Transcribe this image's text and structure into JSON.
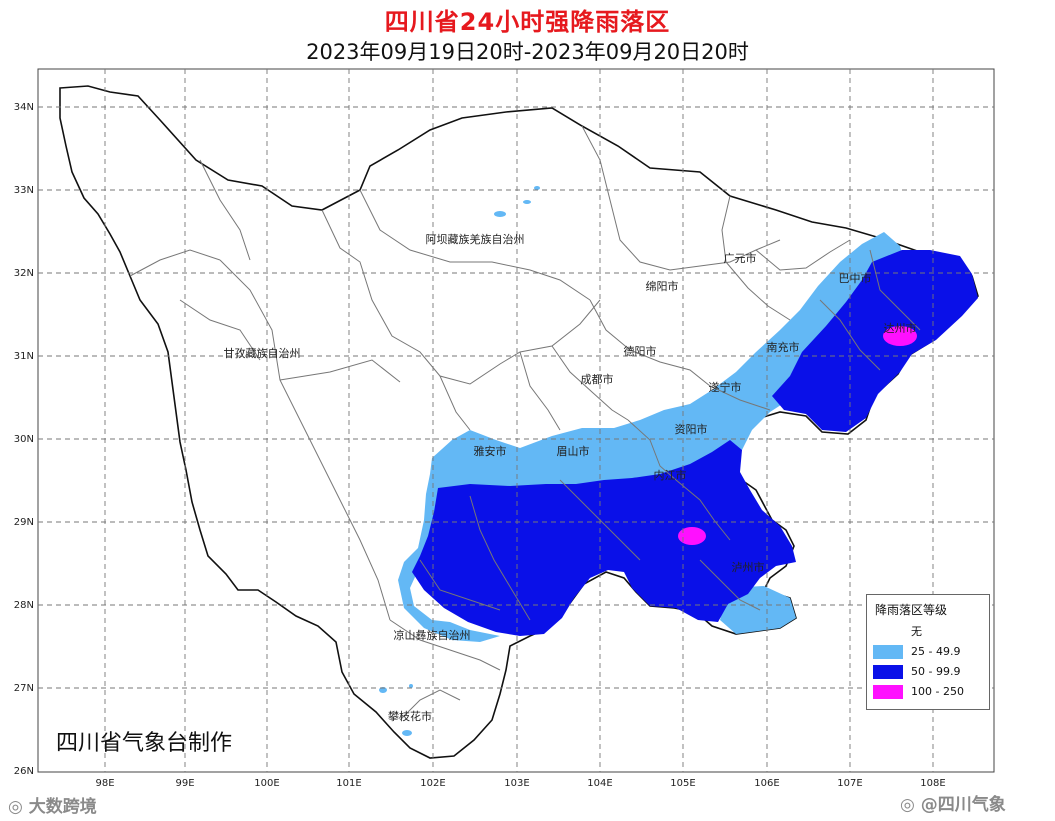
{
  "title": "四川省24小时强降雨落区",
  "subtitle": "2023年09月19日20时-2023年09月20日20时",
  "axes": {
    "lon": [
      "98E",
      "99E",
      "100E",
      "101E",
      "102E",
      "103E",
      "104E",
      "105E",
      "106E",
      "107E",
      "108E"
    ],
    "lat": [
      "34N",
      "33N",
      "32N",
      "31N",
      "30N",
      "29N",
      "28N",
      "27N",
      "26N"
    ]
  },
  "places": [
    {
      "id": "aba",
      "label": "阿坝藏族羌族自治州"
    },
    {
      "id": "ganzi",
      "label": "甘孜藏族自治州"
    },
    {
      "id": "guangyuan",
      "label": "广元市"
    },
    {
      "id": "bazhong",
      "label": "巴中市"
    },
    {
      "id": "mianyang",
      "label": "绵阳市"
    },
    {
      "id": "dazhou",
      "label": "达州市"
    },
    {
      "id": "deyang",
      "label": "德阳市"
    },
    {
      "id": "nanchong",
      "label": "南充市"
    },
    {
      "id": "chengdu",
      "label": "成都市"
    },
    {
      "id": "suining",
      "label": "遂宁市"
    },
    {
      "id": "ziyang",
      "label": "资阳市"
    },
    {
      "id": "yaan",
      "label": "雅安市"
    },
    {
      "id": "meishan",
      "label": "眉山市"
    },
    {
      "id": "neijiang",
      "label": "内江市"
    },
    {
      "id": "luzhou",
      "label": "泸州市"
    },
    {
      "id": "liangshan",
      "label": "凉山彝族自治州"
    },
    {
      "id": "panzhihua",
      "label": "攀枝花市"
    }
  ],
  "legend": {
    "title": "降雨落区等级",
    "items": [
      {
        "label": "无",
        "color": "#ffffff"
      },
      {
        "label": "25 - 49.9",
        "color": "#63b8f5"
      },
      {
        "label": "50 - 99.9",
        "color": "#0a10e8"
      },
      {
        "label": "100 - 250",
        "color": "#ff10ff"
      }
    ]
  },
  "credit": "四川省气象台制作",
  "watermarks": {
    "left": "大数跨境",
    "right": "@四川气象"
  },
  "colors": {
    "title": "#e6191e",
    "light_rain": "#63b8f5",
    "heavy_rain": "#0a10e8",
    "extreme_rain": "#ff10ff"
  }
}
